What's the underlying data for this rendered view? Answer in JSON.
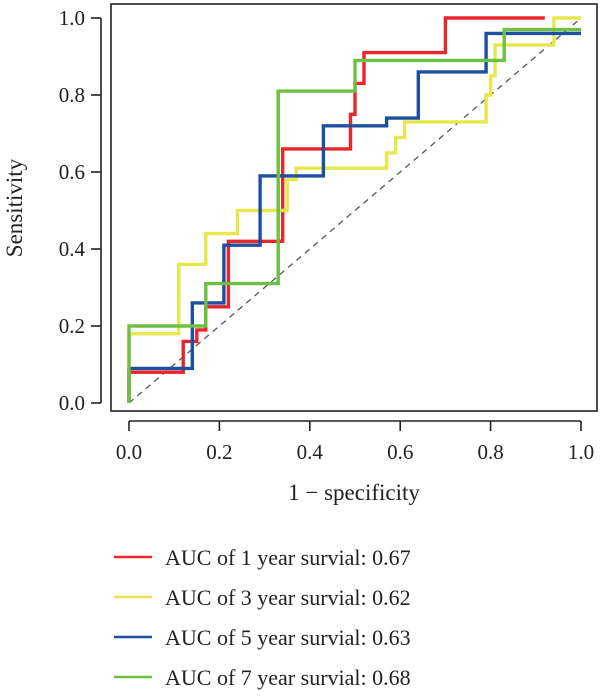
{
  "chart_data": {
    "type": "line",
    "title": "",
    "xlabel": "1 − specificity",
    "ylabel": "Sensitivity",
    "xlim": [
      0,
      1
    ],
    "ylim": [
      0,
      1
    ],
    "x_ticks": [
      "0.0",
      "0.2",
      "0.4",
      "0.6",
      "0.8",
      "1.0"
    ],
    "y_ticks": [
      "0.0",
      "0.2",
      "0.4",
      "0.6",
      "0.8",
      "1.0"
    ],
    "grid": false,
    "legend_position": "bottom",
    "reference_line": {
      "style": "dashed",
      "color": "#555555",
      "from": [
        0,
        0
      ],
      "to": [
        1,
        1
      ]
    },
    "series": [
      {
        "name": "AUC of 1 year survial: 0.67",
        "color": "#e8262b",
        "points": [
          [
            0,
            0
          ],
          [
            0,
            0.08
          ],
          [
            0.12,
            0.08
          ],
          [
            0.12,
            0.16
          ],
          [
            0.15,
            0.16
          ],
          [
            0.15,
            0.19
          ],
          [
            0.17,
            0.19
          ],
          [
            0.17,
            0.25
          ],
          [
            0.22,
            0.25
          ],
          [
            0.22,
            0.42
          ],
          [
            0.34,
            0.42
          ],
          [
            0.34,
            0.66
          ],
          [
            0.49,
            0.66
          ],
          [
            0.49,
            0.75
          ],
          [
            0.5,
            0.75
          ],
          [
            0.5,
            0.83
          ],
          [
            0.52,
            0.83
          ],
          [
            0.52,
            0.91
          ],
          [
            0.7,
            0.91
          ],
          [
            0.7,
            1.0
          ],
          [
            0.92,
            1.0
          ]
        ]
      },
      {
        "name": "AUC of 3 year survial: 0.62",
        "color": "#e7e74e",
        "points": [
          [
            0,
            0
          ],
          [
            0,
            0.18
          ],
          [
            0.11,
            0.18
          ],
          [
            0.11,
            0.36
          ],
          [
            0.17,
            0.36
          ],
          [
            0.17,
            0.44
          ],
          [
            0.24,
            0.44
          ],
          [
            0.24,
            0.5
          ],
          [
            0.35,
            0.5
          ],
          [
            0.35,
            0.58
          ],
          [
            0.37,
            0.58
          ],
          [
            0.37,
            0.61
          ],
          [
            0.57,
            0.61
          ],
          [
            0.57,
            0.65
          ],
          [
            0.59,
            0.65
          ],
          [
            0.59,
            0.69
          ],
          [
            0.61,
            0.69
          ],
          [
            0.61,
            0.73
          ],
          [
            0.79,
            0.73
          ],
          [
            0.79,
            0.8
          ],
          [
            0.8,
            0.8
          ],
          [
            0.8,
            0.85
          ],
          [
            0.81,
            0.85
          ],
          [
            0.81,
            0.93
          ],
          [
            0.94,
            0.93
          ],
          [
            0.94,
            1.0
          ],
          [
            1.0,
            1.0
          ]
        ]
      },
      {
        "name": "AUC of 5 year survial: 0.63",
        "color": "#1f4fa0",
        "points": [
          [
            0,
            0
          ],
          [
            0,
            0.09
          ],
          [
            0.14,
            0.09
          ],
          [
            0.14,
            0.26
          ],
          [
            0.21,
            0.26
          ],
          [
            0.21,
            0.41
          ],
          [
            0.29,
            0.41
          ],
          [
            0.29,
            0.59
          ],
          [
            0.36,
            0.59
          ],
          [
            0.36,
            0.59
          ],
          [
            0.43,
            0.59
          ],
          [
            0.43,
            0.72
          ],
          [
            0.5,
            0.72
          ],
          [
            0.5,
            0.72
          ],
          [
            0.57,
            0.72
          ],
          [
            0.57,
            0.74
          ],
          [
            0.64,
            0.74
          ],
          [
            0.64,
            0.86
          ],
          [
            0.79,
            0.86
          ],
          [
            0.79,
            0.96
          ],
          [
            1.0,
            0.96
          ]
        ]
      },
      {
        "name": "AUC of 7 year survial: 0.68",
        "color": "#6cc142",
        "points": [
          [
            0,
            0
          ],
          [
            0,
            0.2
          ],
          [
            0.17,
            0.2
          ],
          [
            0.17,
            0.31
          ],
          [
            0.33,
            0.31
          ],
          [
            0.33,
            0.81
          ],
          [
            0.5,
            0.81
          ],
          [
            0.5,
            0.89
          ],
          [
            0.83,
            0.89
          ],
          [
            0.83,
            0.97
          ],
          [
            1.0,
            0.97
          ]
        ]
      }
    ]
  }
}
